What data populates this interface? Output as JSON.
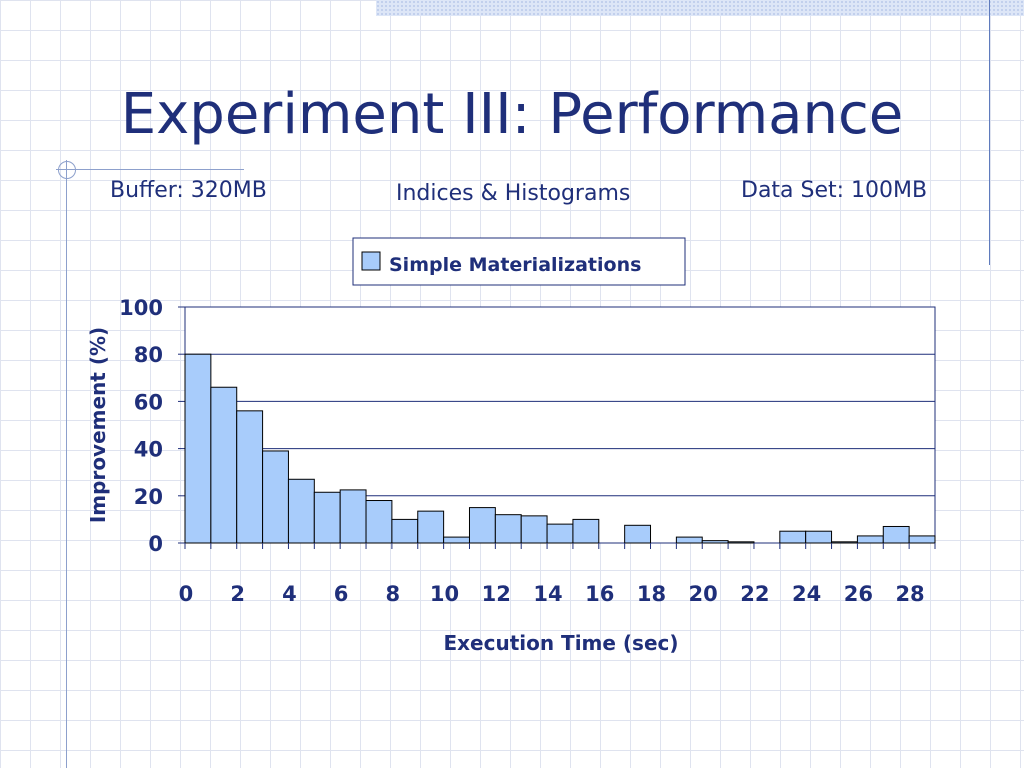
{
  "slide": {
    "title": "Experiment III: Performance",
    "subtitles": {
      "left": "Buffer: 320MB",
      "center": "Indices & Histograms",
      "right": "Data Set: 100MB"
    }
  },
  "colors": {
    "text": "#1f2f7a",
    "bar_fill": "#a8ccfb",
    "bar_stroke": "#000000",
    "grid": "#1f2f7a"
  },
  "chart_data": {
    "type": "bar",
    "xlabel": "Execution Time (sec)",
    "ylabel": "Improvement (%)",
    "ylim": [
      0,
      100
    ],
    "yticks": [
      0,
      20,
      40,
      60,
      80,
      100
    ],
    "xlim": [
      0,
      29
    ],
    "xticks": [
      0,
      2,
      4,
      6,
      8,
      10,
      12,
      14,
      16,
      18,
      20,
      22,
      24,
      26,
      28
    ],
    "grid": true,
    "legend": {
      "placement": "top-center",
      "entries": [
        "Simple Materializations"
      ]
    },
    "series": [
      {
        "name": "Simple Materializations",
        "x": [
          1,
          2,
          3,
          4,
          5,
          6,
          7,
          8,
          9,
          10,
          11,
          12,
          13,
          14,
          15,
          16,
          17,
          18,
          19,
          20,
          21,
          22,
          23,
          24,
          25,
          26,
          27,
          28,
          29
        ],
        "values": [
          80,
          66,
          56,
          39,
          27,
          21.5,
          22.5,
          18,
          10,
          13.5,
          2.5,
          15,
          12,
          11.5,
          8,
          10,
          0,
          7.5,
          0,
          2.5,
          1,
          0.5,
          0,
          5,
          5,
          0.5,
          3,
          7,
          3
        ]
      }
    ]
  }
}
